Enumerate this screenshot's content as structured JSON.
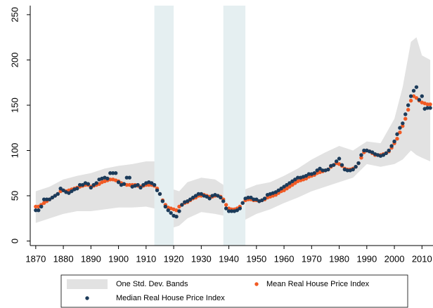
{
  "chart_data": {
    "type": "scatter",
    "x": [
      1870,
      1871,
      1872,
      1873,
      1874,
      1875,
      1876,
      1877,
      1878,
      1879,
      1880,
      1881,
      1882,
      1883,
      1884,
      1885,
      1886,
      1887,
      1888,
      1889,
      1890,
      1891,
      1892,
      1893,
      1894,
      1895,
      1896,
      1897,
      1898,
      1899,
      1900,
      1901,
      1902,
      1903,
      1904,
      1905,
      1906,
      1907,
      1908,
      1909,
      1910,
      1911,
      1912,
      1913,
      1914,
      1915,
      1916,
      1917,
      1918,
      1919,
      1920,
      1921,
      1922,
      1923,
      1924,
      1925,
      1926,
      1927,
      1928,
      1929,
      1930,
      1931,
      1932,
      1933,
      1934,
      1935,
      1936,
      1937,
      1938,
      1939,
      1940,
      1941,
      1942,
      1943,
      1944,
      1945,
      1946,
      1947,
      1948,
      1949,
      1950,
      1951,
      1952,
      1953,
      1954,
      1955,
      1956,
      1957,
      1958,
      1959,
      1960,
      1961,
      1962,
      1963,
      1964,
      1965,
      1966,
      1967,
      1968,
      1969,
      1970,
      1971,
      1972,
      1973,
      1974,
      1975,
      1976,
      1977,
      1978,
      1979,
      1980,
      1981,
      1982,
      1983,
      1984,
      1985,
      1986,
      1987,
      1988,
      1989,
      1990,
      1991,
      1992,
      1993,
      1994,
      1995,
      1996,
      1997,
      1998,
      1999,
      2000,
      2001,
      2002,
      2003,
      2004,
      2005,
      2006,
      2007,
      2008,
      2009,
      2010,
      2011,
      2012,
      2013
    ],
    "series": [
      {
        "name": "Mean Real House Price Index",
        "color": "#f15a24",
        "values": [
          38,
          38,
          40,
          42,
          44,
          46,
          48,
          50,
          52,
          55,
          56,
          55,
          56,
          57,
          58,
          59,
          60,
          61,
          62,
          62,
          60,
          61,
          62,
          63,
          65,
          66,
          67,
          68,
          68,
          67,
          66,
          64,
          63,
          62,
          62,
          62,
          62,
          61,
          60,
          61,
          62,
          62,
          62,
          61,
          58,
          52,
          45,
          40,
          37,
          36,
          35,
          34,
          38,
          40,
          42,
          43,
          45,
          47,
          48,
          50,
          50,
          51,
          50,
          49,
          49,
          50,
          50,
          49,
          46,
          40,
          36,
          35,
          35,
          36,
          38,
          42,
          45,
          46,
          46,
          45,
          45,
          44,
          45,
          46,
          48,
          49,
          50,
          51,
          53,
          55,
          56,
          58,
          60,
          62,
          64,
          66,
          67,
          68,
          69,
          71,
          72,
          73,
          75,
          76,
          77,
          78,
          79,
          82,
          84,
          86,
          85,
          83,
          80,
          79,
          79,
          80,
          82,
          86,
          92,
          98,
          100,
          99,
          97,
          95,
          95,
          95,
          96,
          97,
          99,
          103,
          108,
          113,
          120,
          127,
          135,
          145,
          155,
          160,
          158,
          155,
          153,
          152,
          151,
          151
        ]
      },
      {
        "name": "Median Real House Price Index",
        "color": "#1c3b5a",
        "values": [
          34,
          34,
          38,
          46,
          46,
          46,
          48,
          50,
          52,
          58,
          56,
          54,
          53,
          55,
          57,
          58,
          62,
          62,
          64,
          63,
          59,
          62,
          64,
          68,
          69,
          70,
          69,
          75,
          75,
          75,
          65,
          62,
          63,
          70,
          70,
          60,
          61,
          62,
          59,
          62,
          64,
          65,
          64,
          62,
          56,
          52,
          44,
          38,
          34,
          31,
          28,
          27,
          33,
          40,
          43,
          44,
          46,
          48,
          50,
          52,
          52,
          50,
          49,
          47,
          50,
          51,
          50,
          48,
          44,
          36,
          33,
          33,
          33,
          34,
          36,
          42,
          47,
          48,
          48,
          46,
          46,
          44,
          45,
          47,
          51,
          52,
          53,
          54,
          56,
          58,
          60,
          62,
          64,
          66,
          68,
          70,
          70,
          71,
          72,
          74,
          74,
          75,
          78,
          80,
          78,
          78,
          79,
          83,
          84,
          88,
          91,
          84,
          79,
          78,
          78,
          79,
          82,
          86,
          95,
          100,
          100,
          99,
          98,
          96,
          95,
          94,
          95,
          97,
          100,
          105,
          110,
          118,
          125,
          130,
          140,
          150,
          160,
          166,
          170,
          156,
          160,
          146,
          147,
          147
        ]
      }
    ],
    "band": {
      "name": "One Std. Dev. Bands",
      "color": "#e2e2e2",
      "x": [
        1870,
        1875,
        1880,
        1885,
        1890,
        1895,
        1900,
        1905,
        1910,
        1913,
        1916,
        1919,
        1922,
        1925,
        1930,
        1935,
        1938,
        1941,
        1945,
        1950,
        1955,
        1960,
        1965,
        1970,
        1975,
        1980,
        1985,
        1990,
        1995,
        2000,
        2003,
        2006,
        2008,
        2010,
        2013
      ],
      "lower": [
        20,
        25,
        30,
        33,
        33,
        35,
        37,
        37,
        38,
        36,
        25,
        14,
        17,
        25,
        32,
        30,
        28,
        20,
        22,
        30,
        35,
        42,
        48,
        55,
        60,
        65,
        70,
        85,
        82,
        85,
        90,
        100,
        95,
        92,
        88
      ],
      "upper": [
        55,
        60,
        68,
        72,
        75,
        80,
        83,
        85,
        88,
        88,
        75,
        58,
        55,
        65,
        70,
        68,
        62,
        55,
        56,
        62,
        65,
        72,
        80,
        90,
        98,
        105,
        100,
        110,
        108,
        135,
        170,
        220,
        225,
        205,
        200
      ]
    },
    "shaded_periods": [
      [
        1913,
        1920
      ],
      [
        1938,
        1946
      ]
    ],
    "shade_color": "#e5eff1",
    "xlim": [
      1868,
      2014
    ],
    "ylim": [
      -5,
      260
    ],
    "xticks": [
      1870,
      1880,
      1890,
      1900,
      1910,
      1920,
      1930,
      1940,
      1950,
      1960,
      1970,
      1980,
      1990,
      2000,
      2010
    ],
    "yticks": [
      0,
      50,
      100,
      150,
      200,
      250
    ]
  }
}
